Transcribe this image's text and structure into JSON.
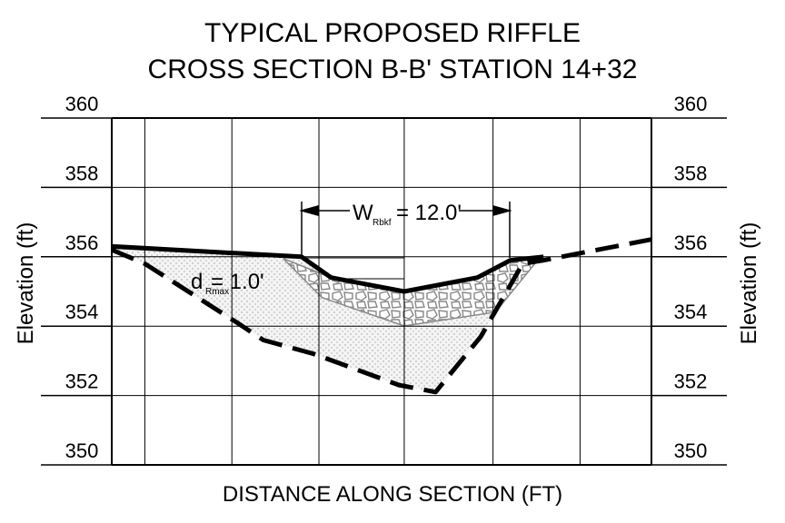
{
  "chart_data": {
    "type": "line",
    "title": [
      "TYPICAL PROPOSED  RIFFLE",
      "CROSS SECTION B-B' STATION 14+32"
    ],
    "xlabel": "DISTANCE ALONG SECTION (FT)",
    "ylabel": "Elevation (ft)",
    "y2label": "Elevation (ft)",
    "xlim": [
      0,
      31
    ],
    "xticks": [
      0,
      1.9,
      6.9,
      11.9,
      16.8,
      21.9,
      26.9,
      31
    ],
    "ylim": [
      350,
      360
    ],
    "yticks": [
      350,
      352,
      354,
      356,
      358,
      360
    ],
    "y2lim": [
      350,
      360
    ],
    "y2ticks": [
      350,
      352,
      354,
      356,
      358,
      360
    ],
    "grid": true,
    "series": [
      {
        "color": "#000000",
        "line_style": "solid",
        "x": [
          0,
          10.9,
          12.6,
          16.8,
          21.0,
          22.9,
          24.8
        ],
        "values": [
          356.3,
          356.0,
          355.4,
          355.0,
          355.4,
          355.9,
          356.0
        ]
      },
      {
        "color": "#000000",
        "line_style": "dashed",
        "x": [
          0,
          1.9,
          7.2,
          8.7,
          11.6,
          16.5,
          18.6,
          21.2,
          23.6,
          24.8,
          31
        ],
        "values": [
          356.2,
          355.8,
          354.1,
          353.6,
          353.2,
          352.3,
          352.1,
          353.7,
          355.8,
          355.9,
          356.5
        ]
      }
    ],
    "annotations": [
      "W",
      "Rbkf",
      "= 12.0'",
      "d",
      "Rmax",
      "= 1.0'"
    ]
  }
}
